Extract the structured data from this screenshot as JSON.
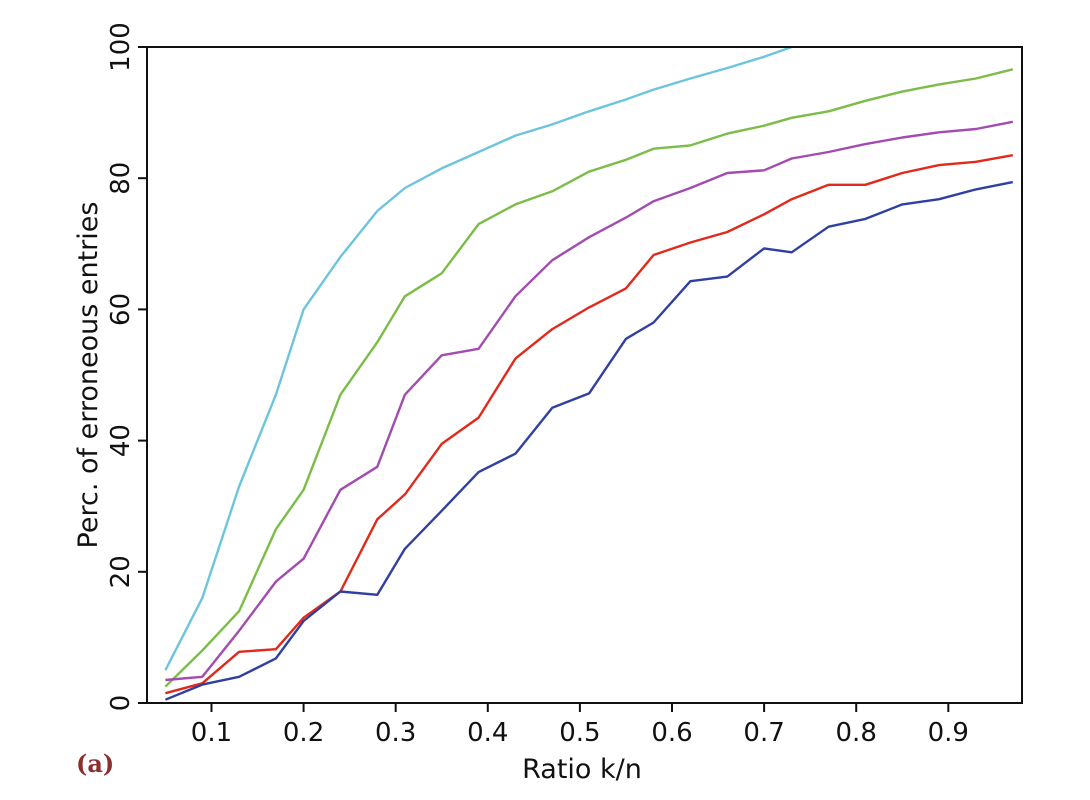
{
  "panel_label": "(a)",
  "chart_data": {
    "type": "line",
    "title": "",
    "xlabel": "Ratio k/n",
    "ylabel": "Perc. of erroneous entries",
    "xlim": [
      0.03,
      0.98
    ],
    "ylim": [
      0,
      100
    ],
    "xticks": [
      0.1,
      0.2,
      0.3,
      0.4,
      0.5,
      0.6,
      0.7,
      0.8,
      0.9
    ],
    "xtick_labels": [
      "0.1",
      "0.2",
      "0.3",
      "0.4",
      "0.5",
      "0.6",
      "0.7",
      "0.8",
      "0.9"
    ],
    "yticks": [
      0,
      20,
      40,
      60,
      80,
      100
    ],
    "ytick_labels": [
      "0",
      "20",
      "40",
      "60",
      "80",
      "100"
    ],
    "grid": false,
    "legend": "none",
    "series": [
      {
        "color": "#6cc5dc",
        "x": [
          0.05,
          0.09,
          0.13,
          0.17,
          0.2,
          0.24,
          0.28,
          0.31,
          0.35,
          0.39,
          0.43,
          0.47,
          0.51,
          0.55,
          0.58,
          0.62,
          0.66,
          0.7,
          0.73
        ],
        "y": [
          5,
          16,
          33,
          47,
          60,
          68,
          75,
          78.5,
          81.5,
          84,
          86.5,
          88.2,
          90.2,
          92,
          93.5,
          95.2,
          96.8,
          98.5,
          100
        ]
      },
      {
        "color": "#7cbc48",
        "x": [
          0.05,
          0.09,
          0.13,
          0.17,
          0.2,
          0.24,
          0.28,
          0.31,
          0.35,
          0.39,
          0.43,
          0.47,
          0.51,
          0.55,
          0.58,
          0.62,
          0.66,
          0.7,
          0.73,
          0.77,
          0.81,
          0.85,
          0.89,
          0.93,
          0.97
        ],
        "y": [
          2.5,
          8,
          14,
          26.5,
          32.5,
          47,
          55,
          62,
          65.5,
          73,
          76,
          78,
          81,
          82.8,
          84.5,
          85,
          86.8,
          88,
          89.2,
          90.2,
          91.8,
          93.2,
          94.3,
          95.2,
          96.6
        ]
      },
      {
        "color": "#a24cb0",
        "x": [
          0.05,
          0.09,
          0.13,
          0.17,
          0.2,
          0.24,
          0.28,
          0.31,
          0.35,
          0.39,
          0.43,
          0.47,
          0.51,
          0.55,
          0.58,
          0.62,
          0.66,
          0.7,
          0.73,
          0.77,
          0.81,
          0.85,
          0.89,
          0.93,
          0.97
        ],
        "y": [
          3.5,
          4,
          11,
          18.5,
          22,
          32.5,
          36,
          47,
          53,
          54,
          62,
          67.5,
          71,
          74,
          76.5,
          78.5,
          80.8,
          81.2,
          83,
          84,
          85.2,
          86.2,
          87,
          87.5,
          88.6
        ]
      },
      {
        "color": "#e12a1c",
        "x": [
          0.05,
          0.09,
          0.13,
          0.17,
          0.2,
          0.24,
          0.28,
          0.31,
          0.35,
          0.39,
          0.43,
          0.47,
          0.51,
          0.55,
          0.58,
          0.62,
          0.66,
          0.7,
          0.73,
          0.77,
          0.81,
          0.85,
          0.89,
          0.93,
          0.97
        ],
        "y": [
          1.5,
          3,
          7.8,
          8.2,
          13,
          17,
          28,
          31.8,
          39.5,
          43.5,
          52.5,
          57,
          60.3,
          63.2,
          68.3,
          70.2,
          71.8,
          74.5,
          76.8,
          79,
          79,
          80.8,
          82,
          82.5,
          83.5
        ]
      },
      {
        "color": "#3040a0",
        "x": [
          0.05,
          0.09,
          0.13,
          0.17,
          0.2,
          0.24,
          0.28,
          0.31,
          0.35,
          0.39,
          0.43,
          0.47,
          0.51,
          0.55,
          0.58,
          0.62,
          0.66,
          0.7,
          0.73,
          0.77,
          0.81,
          0.85,
          0.89,
          0.93,
          0.97
        ],
        "y": [
          0.5,
          2.8,
          4,
          6.8,
          12.5,
          17,
          16.5,
          23.5,
          29.3,
          35.2,
          38,
          45,
          47.2,
          55.5,
          58,
          64.3,
          65,
          69.3,
          68.7,
          72.6,
          73.8,
          76,
          76.8,
          78.3,
          79.4
        ]
      }
    ]
  }
}
